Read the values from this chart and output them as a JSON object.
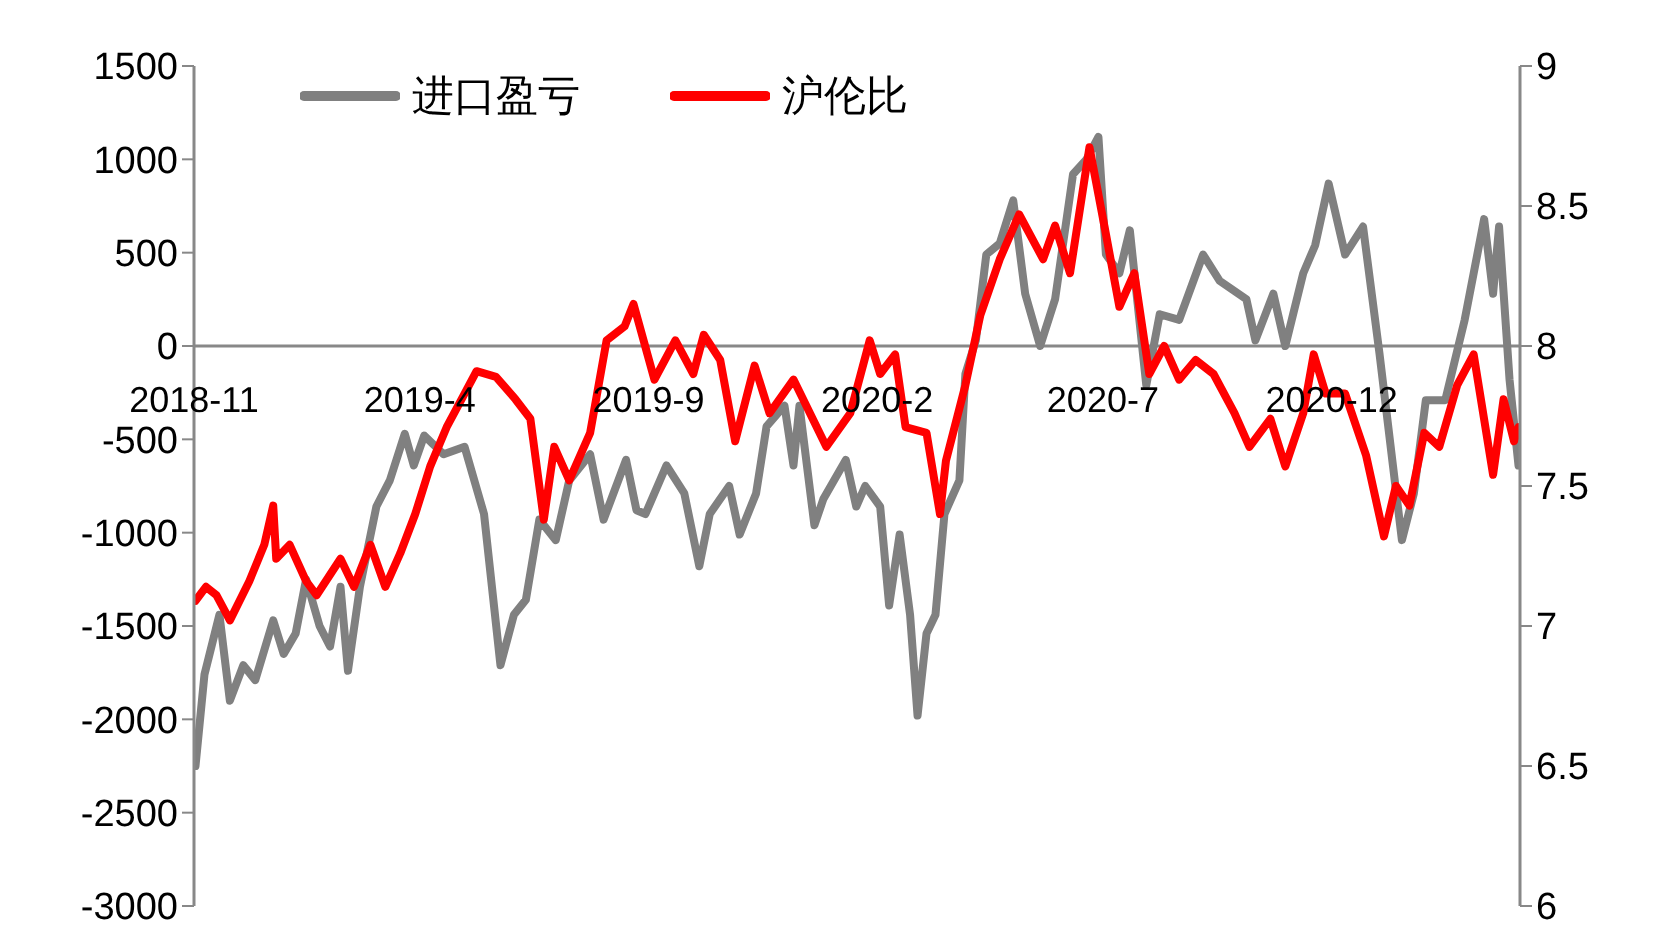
{
  "chart_data": {
    "type": "line",
    "legend": "top",
    "marker": "none",
    "line_style": "solid",
    "xlim": [
      "2018-11-01",
      "2021-04-06"
    ],
    "xticks": [
      {
        "value": "2018-11-01",
        "label": "2018-11"
      },
      {
        "value": "2019-04-01",
        "label": "2019-4"
      },
      {
        "value": "2019-09-01",
        "label": "2019-9"
      },
      {
        "value": "2020-02-01",
        "label": "2020-2"
      },
      {
        "value": "2020-07-01",
        "label": "2020-7"
      },
      {
        "value": "2020-12-01",
        "label": "2020-12"
      }
    ],
    "ylim": [
      -3000,
      1500
    ],
    "yticks": [
      -3000,
      -2500,
      -2000,
      -1500,
      -1000,
      -500,
      0,
      500,
      1000,
      1500
    ],
    "y2lim": [
      6,
      9
    ],
    "y2ticks": [
      6,
      6.5,
      7,
      7.5,
      8,
      8.5,
      9
    ],
    "series": [
      {
        "name": "进口盈亏",
        "color": "#808080",
        "x": [
          "2018-11-02",
          "2018-11-08",
          "2018-11-18",
          "2018-11-25",
          "2018-12-04",
          "2018-12-12",
          "2018-12-24",
          "2018-12-31",
          "2019-01-08",
          "2019-01-15",
          "2019-01-24",
          "2019-01-31",
          "2019-02-07",
          "2019-02-12",
          "2019-02-20",
          "2019-03-03",
          "2019-03-12",
          "2019-03-22",
          "2019-03-28",
          "2019-04-04",
          "2019-04-17",
          "2019-05-01",
          "2019-05-14",
          "2019-05-25",
          "2019-06-03",
          "2019-06-11",
          "2019-06-20",
          "2019-07-01",
          "2019-07-10",
          "2019-07-24",
          "2019-08-02",
          "2019-08-17",
          "2019-08-24",
          "2019-08-30",
          "2019-09-13",
          "2019-09-25",
          "2019-10-05",
          "2019-10-12",
          "2019-10-25",
          "2019-11-01",
          "2019-11-12",
          "2019-11-19",
          "2019-12-01",
          "2019-12-07",
          "2019-12-11",
          "2019-12-21",
          "2019-12-27",
          "2020-01-11",
          "2020-01-18",
          "2020-01-24",
          "2020-02-03",
          "2020-02-09",
          "2020-02-16",
          "2020-02-23",
          "2020-02-28",
          "2020-03-05",
          "2020-03-11",
          "2020-03-17",
          "2020-03-27",
          "2020-03-31",
          "2020-04-07",
          "2020-04-14",
          "2020-04-23",
          "2020-05-02",
          "2020-05-10",
          "2020-05-20",
          "2020-05-30",
          "2020-06-11",
          "2020-06-20",
          "2020-06-28",
          "2020-07-03",
          "2020-07-12",
          "2020-07-19",
          "2020-07-30",
          "2020-08-08",
          "2020-08-21",
          "2020-09-06",
          "2020-09-17",
          "2020-10-05",
          "2020-10-11",
          "2020-10-23",
          "2020-10-31",
          "2020-11-12",
          "2020-11-20",
          "2020-11-29",
          "2020-12-10",
          "2020-12-22",
          "2021-01-02",
          "2021-01-11",
          "2021-01-17",
          "2021-01-25",
          "2021-02-02",
          "2021-02-15",
          "2021-02-28",
          "2021-03-13",
          "2021-03-19",
          "2021-03-23",
          "2021-03-30",
          "2021-04-05"
        ],
        "values": [
          -2250,
          -1760,
          -1440,
          -1900,
          -1710,
          -1790,
          -1470,
          -1650,
          -1540,
          -1250,
          -1500,
          -1610,
          -1290,
          -1740,
          -1290,
          -860,
          -720,
          -470,
          -640,
          -480,
          -580,
          -540,
          -900,
          -1710,
          -1440,
          -1360,
          -930,
          -1040,
          -720,
          -580,
          -930,
          -610,
          -880,
          -900,
          -640,
          -790,
          -1180,
          -900,
          -750,
          -1010,
          -790,
          -430,
          -320,
          -640,
          -320,
          -960,
          -820,
          -610,
          -860,
          -750,
          -860,
          -1390,
          -1010,
          -1440,
          -1980,
          -1540,
          -1440,
          -900,
          -720,
          -150,
          30,
          490,
          550,
          780,
          280,
          0,
          250,
          920,
          1000,
          1120,
          490,
          390,
          620,
          -210,
          170,
          140,
          490,
          350,
          250,
          30,
          280,
          0,
          390,
          540,
          870,
          490,
          640,
          -40,
          -640,
          -1040,
          -790,
          -290,
          -290,
          140,
          680,
          280,
          640,
          -180,
          -640
        ]
      },
      {
        "name": "沪伦比",
        "color": "#ff0000",
        "axis": "y2",
        "x": [
          "2018-11-02",
          "2018-11-09",
          "2018-11-16",
          "2018-11-25",
          "2018-12-08",
          "2018-12-18",
          "2018-12-24",
          "2018-12-26",
          "2019-01-04",
          "2019-01-15",
          "2019-01-22",
          "2019-02-07",
          "2019-02-16",
          "2019-02-27",
          "2019-03-09",
          "2019-03-19",
          "2019-03-29",
          "2019-04-08",
          "2019-04-19",
          "2019-05-01",
          "2019-05-09",
          "2019-05-22",
          "2019-06-04",
          "2019-06-14",
          "2019-06-23",
          "2019-06-30",
          "2019-07-10",
          "2019-07-24",
          "2019-08-04",
          "2019-08-16",
          "2019-08-22",
          "2019-09-05",
          "2019-09-19",
          "2019-10-01",
          "2019-10-08",
          "2019-10-19",
          "2019-10-29",
          "2019-11-11",
          "2019-11-21",
          "2019-12-07",
          "2019-12-29",
          "2020-01-14",
          "2020-01-27",
          "2020-02-03",
          "2020-02-13",
          "2020-02-20",
          "2020-03-05",
          "2020-03-14",
          "2020-03-18",
          "2020-03-31",
          "2020-04-10",
          "2020-04-23",
          "2020-05-06",
          "2020-05-22",
          "2020-05-30",
          "2020-06-09",
          "2020-06-22",
          "2020-07-03",
          "2020-07-12",
          "2020-07-22",
          "2020-08-01",
          "2020-08-11",
          "2020-08-21",
          "2020-09-01",
          "2020-09-13",
          "2020-09-27",
          "2020-10-07",
          "2020-10-21",
          "2020-10-31",
          "2020-11-12",
          "2020-11-19",
          "2020-11-27",
          "2020-12-10",
          "2020-12-24",
          "2021-01-05",
          "2021-01-13",
          "2021-01-22",
          "2021-02-01",
          "2021-02-11",
          "2021-02-23",
          "2021-03-06",
          "2021-03-19",
          "2021-03-26",
          "2021-04-02",
          "2021-04-05"
        ],
        "values": [
          7.09,
          7.14,
          7.11,
          7.02,
          7.16,
          7.29,
          7.43,
          7.24,
          7.29,
          7.16,
          7.11,
          7.24,
          7.14,
          7.29,
          7.14,
          7.26,
          7.4,
          7.57,
          7.71,
          7.83,
          7.91,
          7.89,
          7.81,
          7.74,
          7.38,
          7.64,
          7.52,
          7.69,
          8.02,
          8.07,
          8.15,
          7.88,
          8.02,
          7.9,
          8.04,
          7.95,
          7.66,
          7.93,
          7.76,
          7.88,
          7.64,
          7.76,
          8.02,
          7.9,
          7.97,
          7.71,
          7.69,
          7.4,
          7.59,
          7.86,
          8.11,
          8.31,
          8.47,
          8.31,
          8.43,
          8.26,
          8.71,
          8.4,
          8.14,
          8.26,
          7.9,
          8.0,
          7.88,
          7.95,
          7.9,
          7.76,
          7.64,
          7.74,
          7.57,
          7.76,
          7.97,
          7.83,
          7.83,
          7.61,
          7.32,
          7.5,
          7.43,
          7.69,
          7.64,
          7.86,
          7.97,
          7.54,
          7.81,
          7.66,
          7.71
        ]
      }
    ]
  }
}
